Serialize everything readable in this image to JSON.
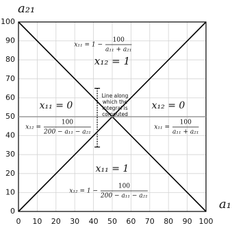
{
  "chart_data": {
    "type": "line",
    "xlabel": "a₁₁",
    "ylabel": "a₂₁",
    "xlim": [
      0,
      100
    ],
    "ylim": [
      0,
      100
    ],
    "xticks": [
      0,
      10,
      20,
      30,
      40,
      50,
      60,
      70,
      80,
      90,
      100
    ],
    "yticks": [
      0,
      10,
      20,
      30,
      40,
      50,
      60,
      70,
      80,
      90,
      100
    ],
    "grid": true,
    "series": [
      {
        "x": [
          0,
          100
        ],
        "values": [
          0,
          100
        ],
        "color": "#000000"
      },
      {
        "x": [
          0,
          100
        ],
        "values": [
          100,
          0
        ],
        "color": "#000000"
      },
      {
        "x": [
          0,
          100
        ],
        "values": [
          50,
          50
        ],
        "color": "#999999"
      },
      {
        "x": [
          42,
          42
        ],
        "values": [
          34,
          65
        ],
        "color": "#000000",
        "dashed": true
      }
    ],
    "annotations": [
      {
        "text": "x₁₁ = 1 −",
        "num": "100",
        "den": "a₁₁ + a₂₁"
      },
      {
        "text": "x₁₂ = 1"
      },
      {
        "lines": [
          "Line along",
          "which the",
          "integral is",
          "computed"
        ]
      },
      {
        "text": "x₁₁ = 0"
      },
      {
        "text": "x₁₂ = 0"
      },
      {
        "text": "x₁₂ =",
        "num": "100",
        "den": "200 − a₁₁ − a₂₁"
      },
      {
        "text": "x₁₁ =",
        "num": "100",
        "den": "a₁₁ + a₂₁"
      },
      {
        "text": "x₁₁ = 1"
      },
      {
        "text": "x₁₂ = 1 −",
        "num": "100",
        "den": "200 − a₁₁ − a₂₁"
      }
    ]
  }
}
